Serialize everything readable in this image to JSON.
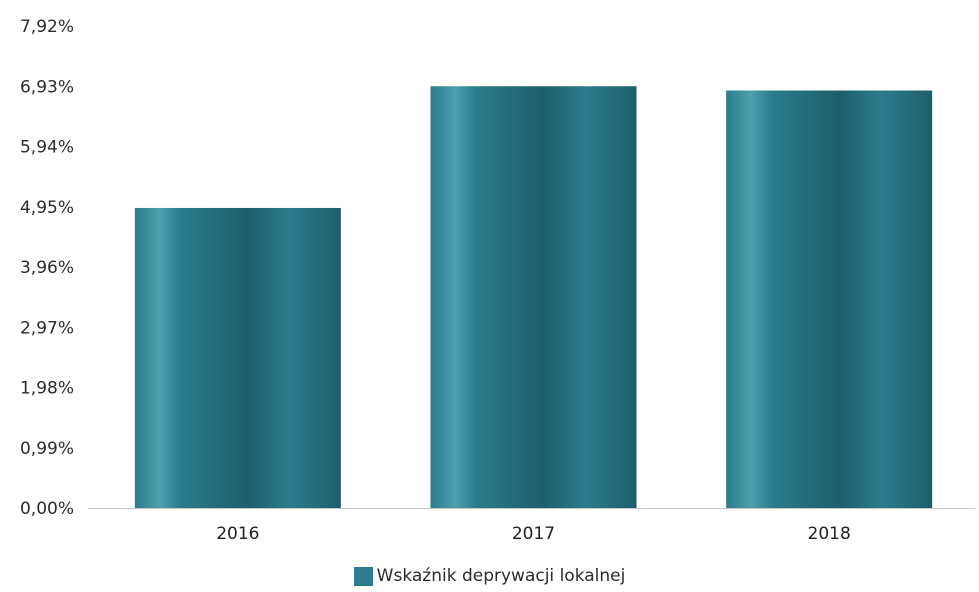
{
  "chart_data": {
    "type": "bar",
    "title": "",
    "xlabel": "",
    "ylabel": "",
    "categories": [
      "2016",
      "2017",
      "2018"
    ],
    "series": [
      {
        "name": "Wskaźnik deprywacji lokalnej",
        "values": [
          4.93,
          6.93,
          6.86
        ]
      }
    ],
    "ylim": [
      0,
      7.92
    ],
    "yticks": [
      "0,00%",
      "0,99%",
      "1,98%",
      "2,97%",
      "3,96%",
      "4,95%",
      "5,94%",
      "6,93%",
      "7,92%"
    ],
    "grid": false,
    "legend_position": "bottom",
    "colors": {
      "bar": "#2b7c8c",
      "bar_light": "#4f9fae",
      "bar_dark": "#1d5e6c",
      "axis": "#c8c8c8"
    }
  }
}
